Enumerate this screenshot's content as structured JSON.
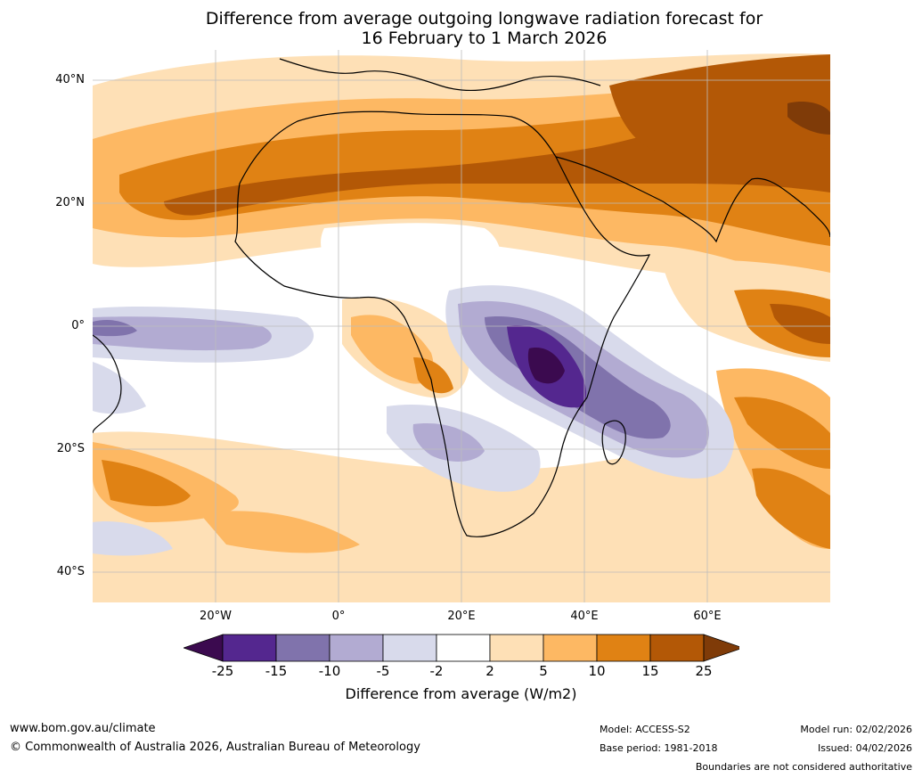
{
  "title": {
    "line1": "Difference from average outgoing longwave radiation forecast for",
    "line2": "16 February to 1 March 2026"
  },
  "map": {
    "lat_labels": [
      "40°N",
      "20°N",
      "0°",
      "20°S",
      "40°S"
    ],
    "lon_labels": [
      "20°W",
      "0°",
      "20°E",
      "40°E",
      "60°E"
    ],
    "lat_range": [
      -45,
      45
    ],
    "lon_range": [
      -40,
      80
    ]
  },
  "colorbar": {
    "ticks": [
      "-25",
      "-15",
      "-10",
      "-5",
      "-2",
      "2",
      "5",
      "10",
      "15",
      "25"
    ],
    "colors": [
      "#3b0a4f",
      "#54278f",
      "#8073ac",
      "#b2abd2",
      "#d8daeb",
      "#ffffff",
      "#fee0b6",
      "#fdb863",
      "#e08214",
      "#b35806",
      "#7f3b08"
    ],
    "label": "Difference from average (W/m2)"
  },
  "footer": {
    "website": "www.bom.gov.au/climate",
    "copyright": "© Commonwealth of Australia 2026, Australian Bureau of Meteorology",
    "model": "Model: ACCESS-S2",
    "base_period": "Base period: 1981-2018",
    "model_run": "Model run: 02/02/2026",
    "issued": "Issued: 04/02/2026",
    "disclaimer": "Boundaries are not considered authoritative"
  }
}
